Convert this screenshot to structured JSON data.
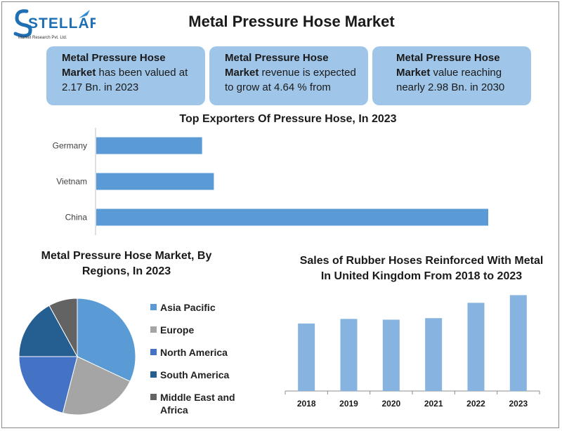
{
  "brand": {
    "name": "STELLAR",
    "tagline": "Market Research Pvt. Ltd."
  },
  "header": {
    "title": "Metal Pressure Hose Market"
  },
  "cards": [
    {
      "bold": "Metal Pressure Hose Market",
      "text": " has been valued at 2.17 Bn. in 2023"
    },
    {
      "bold": "Metal Pressure Hose Market",
      "text": " revenue is expected to grow at 4.64 % from"
    },
    {
      "bold": "Metal Pressure Hose Market",
      "text": " value reaching nearly 2.98 Bn. in 2030"
    }
  ],
  "colors": {
    "card_bg": "#9fc5e8",
    "bar": "#5b9bd5",
    "column": "#86b3e0",
    "pie": [
      "#5b9bd5",
      "#a5a5a5",
      "#4472c4",
      "#255e91",
      "#636363"
    ]
  },
  "chart_data": [
    {
      "type": "bar",
      "orientation": "horizontal",
      "title": "Top Exporters Of Pressure Hose, In 2023",
      "categories": [
        "Germany",
        "Vietnam",
        "China"
      ],
      "values": [
        27,
        30,
        100
      ],
      "xlim": [
        0,
        100
      ],
      "grid": false,
      "axis_labels_shown": false
    },
    {
      "type": "pie",
      "title": "Metal Pressure Hose Market, By Regions, In 2023",
      "labels": [
        "Asia Pacific",
        "Europe",
        "North America",
        "South America",
        "Middle East and Africa"
      ],
      "values": [
        32,
        22,
        21,
        17,
        8
      ],
      "legend": "right"
    },
    {
      "type": "bar",
      "orientation": "vertical",
      "title": "Sales of Rubber Hoses Reinforced With Metal In United Kingdom From 2018 to 2023",
      "categories": [
        "2018",
        "2019",
        "2020",
        "2021",
        "2022",
        "2023"
      ],
      "values": [
        88,
        94,
        93,
        95,
        115,
        125
      ],
      "ylim": [
        0,
        130
      ],
      "grid": false,
      "value_axis_shown": false
    }
  ]
}
